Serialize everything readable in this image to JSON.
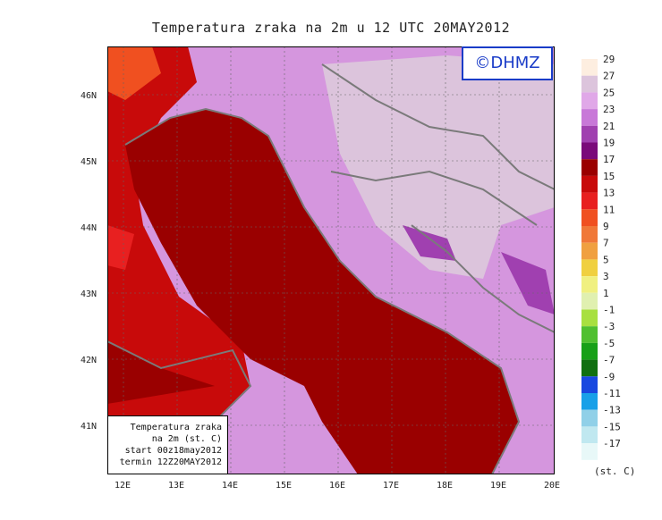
{
  "title": "Temperatura zraka na 2m u 12 UTC 20MAY2012",
  "copyright": "©DHMZ",
  "info_box": {
    "line1": "Temperatura zraka",
    "line2": "na 2m (st. C)",
    "line3": "start 00z18may2012",
    "line4": "termin 12Z20MAY2012"
  },
  "axes": {
    "lat_labels": [
      "46N",
      "45N",
      "44N",
      "43N",
      "42N",
      "41N"
    ],
    "lon_labels": [
      "12E",
      "13E",
      "14E",
      "15E",
      "16E",
      "17E",
      "18E",
      "19E",
      "20E"
    ]
  },
  "legend": {
    "unit": "(st. C)",
    "labels": [
      "29",
      "27",
      "25",
      "23",
      "21",
      "19",
      "17",
      "15",
      "13",
      "11",
      "9",
      "7",
      "5",
      "3",
      "1",
      "-1",
      "-3",
      "-5",
      "-7",
      "-9",
      "-11",
      "-13",
      "-15",
      "-17"
    ],
    "colors": [
      "#fdeee0",
      "#dcc4dc",
      "#e0a8e8",
      "#c878d8",
      "#a040b0",
      "#7a0a7a",
      "#9a0000",
      "#c80a0a",
      "#e82020",
      "#f05020",
      "#f07838",
      "#f0a040",
      "#f0d040",
      "#f0f080",
      "#e0f0b0",
      "#a8e040",
      "#50c030",
      "#18a018",
      "#107010",
      "#1848e0",
      "#18a0e8",
      "#90d0e8",
      "#c0e8f0",
      "#e8f8f8"
    ]
  },
  "palette": {
    "sea": "#9a0000",
    "coast": "#7a7a7a"
  }
}
